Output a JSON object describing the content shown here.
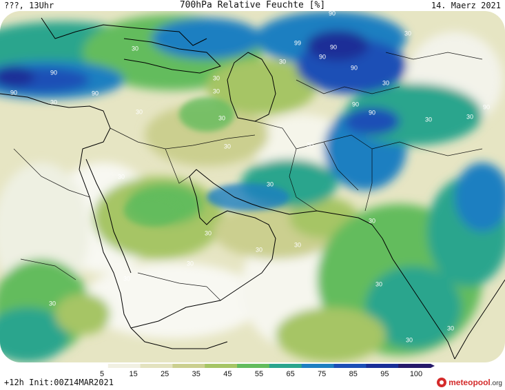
{
  "header": {
    "left": "???, 13Uhr",
    "title": "700hPa Relative Feuchte [%]",
    "date": "14. Maerz 2021"
  },
  "footer": {
    "init": "+12h Init:00Z14MAR2021",
    "logo_main": "meteopool",
    "logo_suffix": ".org"
  },
  "colorbar": {
    "tick_labels": [
      "5",
      "15",
      "25",
      "35",
      "45",
      "55",
      "65",
      "75",
      "85",
      "95",
      "100"
    ],
    "colors": [
      "#ffffff",
      "#f1f0e2",
      "#e3e2bf",
      "#cbcf8f",
      "#a6c565",
      "#63bc5d",
      "#2ba58d",
      "#1e7fc1",
      "#1c4fb6",
      "#1a2f97",
      "#261a6a"
    ]
  },
  "map": {
    "contour_labels": [
      "90",
      "90",
      "90",
      "90",
      "90",
      "90",
      "90",
      "90",
      "90",
      "99",
      "90",
      "30",
      "30",
      "30",
      "30",
      "30",
      "30",
      "30",
      "30",
      "30",
      "30",
      "30",
      "30",
      "30",
      "30",
      "30",
      "30",
      "30",
      "30",
      "30",
      "30",
      "30",
      "30",
      "30",
      "30",
      "30"
    ]
  }
}
